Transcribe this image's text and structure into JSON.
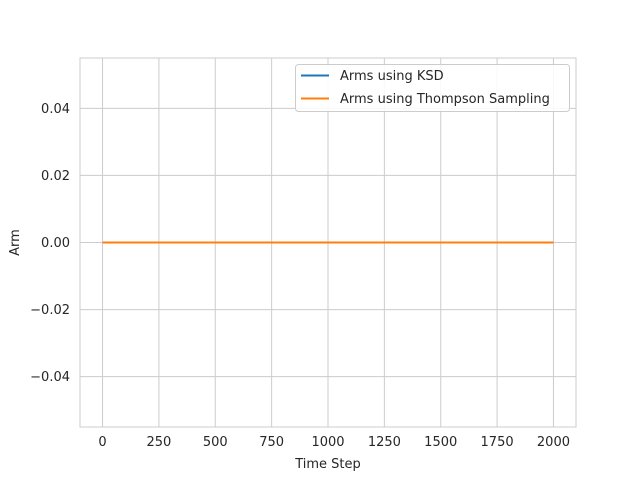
{
  "chart_data": {
    "type": "line",
    "title": "",
    "xlabel": "Time Step",
    "ylabel": "Arm",
    "xlim": [
      -100,
      2100
    ],
    "ylim": [
      -0.055,
      0.055
    ],
    "x_ticks": [
      0,
      250,
      500,
      750,
      1000,
      1250,
      1500,
      1750,
      2000
    ],
    "x_tick_labels": [
      "0",
      "250",
      "500",
      "750",
      "1000",
      "1250",
      "1500",
      "1750",
      "2000"
    ],
    "y_ticks": [
      -0.04,
      -0.02,
      0.0,
      0.02,
      0.04
    ],
    "y_tick_labels": [
      "−0.04",
      "−0.02",
      "0.00",
      "0.02",
      "0.04"
    ],
    "grid": true,
    "legend_position": "top-right",
    "series": [
      {
        "name": "Arms using KSD",
        "color": "#1f77b4",
        "x": [
          0,
          2000
        ],
        "y": [
          0,
          0
        ]
      },
      {
        "name": "Arms using Thompson Sampling",
        "color": "#ff7f0e",
        "x": [
          0,
          2000
        ],
        "y": [
          0,
          0
        ]
      }
    ]
  }
}
